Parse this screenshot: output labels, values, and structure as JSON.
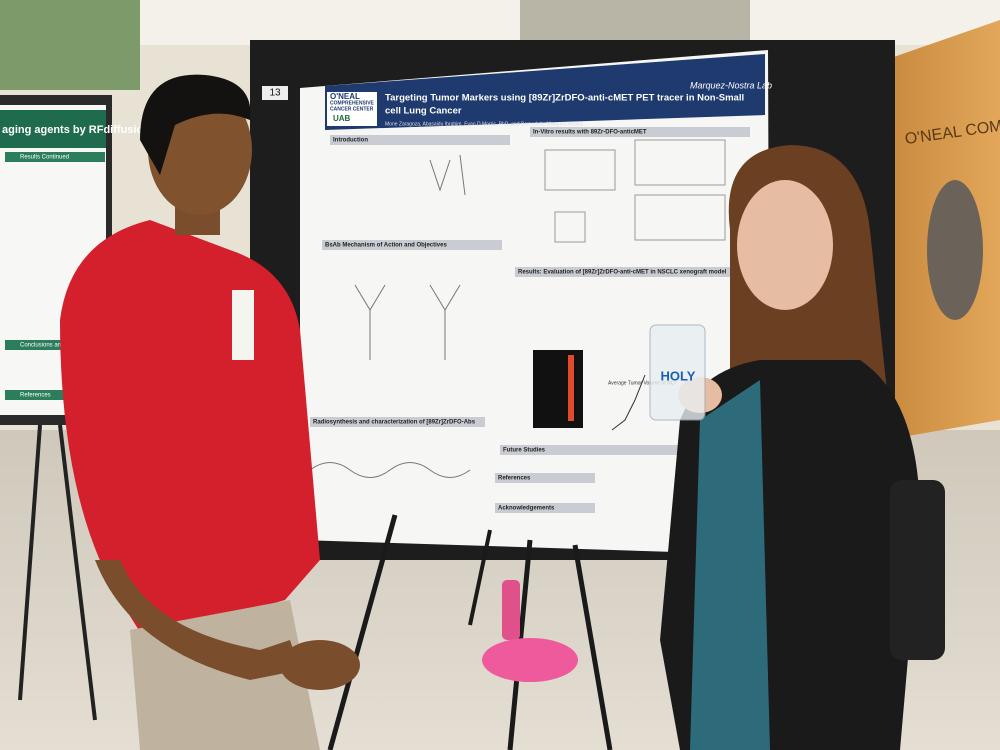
{
  "scene": {
    "board_number": "13",
    "poster": {
      "center_name": [
        "O'NEAL",
        "COMPREHENSIVE",
        "CANCER CENTER"
      ],
      "institution": "UAB",
      "title_lines": [
        "Targeting Tumor Markers using [89Zr]ZrDFO-anti-cMET PET tracer in Non-Small",
        "cell Lung Cancer"
      ],
      "authors": "Mone Zaragoza, Abasaidu Ibrahim, Evan D Morris, PhD, and Bernadette Marquez-Nostra",
      "lab": "Marquez-Nostra Lab",
      "sections": [
        "Introduction",
        "In-Vitro results with 89Zr-DFO-anticMET",
        "BsAb Mechanism of Action and Objectives",
        "Results: Evaluation of [89Zr]ZrDFO-anti-cMET in NSCLC xenograft model",
        "Radiosynthesis and characterization of [89Zr]ZrDFO-Abs",
        "Future Studies",
        "References",
        "Acknowledgements"
      ],
      "graph_title": "Average Tumor Volume of NCI"
    },
    "left_poster": {
      "title": "aging agents by RFdiffusion",
      "sections": [
        "Results Continued",
        "Conclusions and Future",
        "References"
      ]
    },
    "cup_text": "HOLY",
    "wall_sign": "O'NEAL COMPREHEN"
  }
}
